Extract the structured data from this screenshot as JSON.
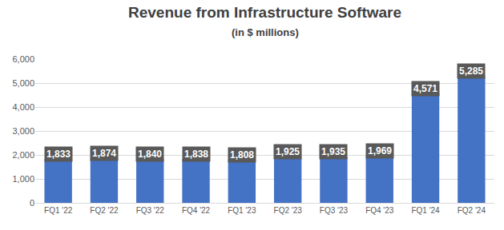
{
  "chart_data": {
    "type": "bar",
    "title": "Revenue from Infrastructure Software",
    "subtitle": "(in $ millions)",
    "categories": [
      "FQ1 '22",
      "FQ2 '22",
      "FQ3 '22",
      "FQ4 '22",
      "FQ1 '23",
      "FQ2 '23",
      "FQ3 '23",
      "FQ4 '23",
      "FQ1 '24",
      "FQ2 '24"
    ],
    "values": [
      1833,
      1874,
      1840,
      1838,
      1808,
      1925,
      1935,
      1969,
      4571,
      5285
    ],
    "value_labels": [
      "1,833",
      "1,874",
      "1,840",
      "1,838",
      "1,808",
      "1,925",
      "1,935",
      "1,969",
      "4,571",
      "5,285"
    ],
    "color": "#4472c4",
    "ylim": [
      0,
      6000
    ],
    "yticks": [
      0,
      {
        "value": 1000,
        "label": "1,000"
      },
      {
        "value": 2000,
        "label": "2,000"
      },
      {
        "value": 3000,
        "label": "3,000"
      },
      {
        "value": 4000,
        "label": "4,000"
      },
      {
        "value": 5000,
        "label": "5,000"
      },
      {
        "value": 6000,
        "label": "6,000"
      }
    ],
    "grid": true,
    "data_labels": true
  }
}
